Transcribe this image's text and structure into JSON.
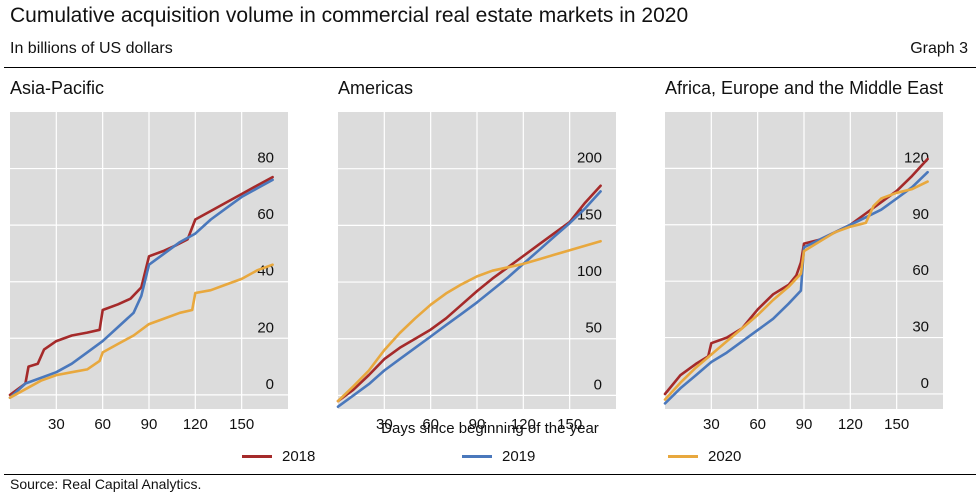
{
  "title": "Cumulative acquisition volume in commercial real estate markets in 2020",
  "subtitle": "In billions of US dollars",
  "graph_label": "Graph 3",
  "xlabel": "Days since beginning of the year",
  "source": "Source: Real Capital Analytics.",
  "legend": [
    {
      "name": "2018",
      "color": "#a52a2a"
    },
    {
      "name": "2019",
      "color": "#4a78bc"
    },
    {
      "name": "2020",
      "color": "#e8a83e"
    }
  ],
  "chart_data": [
    {
      "type": "line",
      "title": "Asia-Pacific",
      "xlim": [
        0,
        180
      ],
      "ylim": [
        -5,
        100
      ],
      "x_ticks": [
        30,
        60,
        90,
        120,
        150
      ],
      "y_ticks": [
        0,
        20,
        40,
        60,
        80
      ],
      "series": [
        {
          "name": "2018",
          "color": "#a52a2a",
          "x": [
            0,
            10,
            12,
            18,
            22,
            30,
            40,
            50,
            58,
            60,
            70,
            78,
            85,
            90,
            100,
            108,
            115,
            120,
            130,
            140,
            150,
            160,
            170
          ],
          "y": [
            0,
            4,
            10,
            11,
            16,
            19,
            21,
            22,
            23,
            30,
            32,
            34,
            38,
            49,
            51,
            53,
            55,
            62,
            65,
            68,
            71,
            74,
            77
          ]
        },
        {
          "name": "2019",
          "color": "#4a78bc",
          "x": [
            0,
            10,
            20,
            30,
            40,
            50,
            60,
            70,
            80,
            85,
            90,
            100,
            110,
            120,
            130,
            140,
            150,
            160,
            170
          ],
          "y": [
            -1,
            4,
            6,
            8,
            11,
            15,
            19,
            24,
            29,
            35,
            46,
            50,
            54,
            57,
            62,
            66,
            70,
            73,
            76
          ]
        },
        {
          "name": "2020",
          "color": "#e8a83e",
          "x": [
            0,
            10,
            20,
            30,
            40,
            50,
            58,
            60,
            70,
            80,
            90,
            100,
            110,
            118,
            120,
            130,
            140,
            150,
            160,
            170
          ],
          "y": [
            -1,
            2,
            5,
            7,
            8,
            9,
            12,
            15,
            18,
            21,
            25,
            27,
            29,
            30,
            36,
            37,
            39,
            41,
            44,
            46
          ]
        }
      ]
    },
    {
      "type": "line",
      "title": "Americas",
      "xlim": [
        0,
        180
      ],
      "ylim": [
        -12,
        250
      ],
      "x_ticks": [
        30,
        60,
        90,
        120,
        150
      ],
      "y_ticks": [
        0,
        50,
        100,
        150,
        200
      ],
      "series": [
        {
          "name": "2018",
          "color": "#a52a2a",
          "x": [
            0,
            10,
            20,
            30,
            40,
            50,
            60,
            70,
            80,
            90,
            100,
            110,
            120,
            130,
            140,
            150,
            160,
            170
          ],
          "y": [
            -5,
            5,
            18,
            32,
            42,
            50,
            58,
            68,
            80,
            92,
            103,
            113,
            123,
            133,
            143,
            153,
            170,
            185
          ]
        },
        {
          "name": "2019",
          "color": "#4a78bc",
          "x": [
            0,
            10,
            20,
            30,
            40,
            50,
            60,
            70,
            80,
            90,
            100,
            110,
            120,
            130,
            140,
            150,
            160,
            170
          ],
          "y": [
            -10,
            0,
            10,
            22,
            32,
            42,
            52,
            62,
            72,
            82,
            93,
            104,
            116,
            128,
            140,
            152,
            165,
            180
          ]
        },
        {
          "name": "2020",
          "color": "#e8a83e",
          "x": [
            0,
            10,
            20,
            30,
            40,
            50,
            60,
            70,
            80,
            90,
            100,
            110,
            120,
            130,
            140,
            150,
            160,
            170
          ],
          "y": [
            -5,
            8,
            22,
            40,
            55,
            68,
            80,
            90,
            98,
            105,
            110,
            113,
            116,
            120,
            124,
            128,
            132,
            136
          ]
        }
      ]
    },
    {
      "type": "line",
      "title": "Africa, Europe and the Middle East",
      "xlim": [
        0,
        180
      ],
      "ylim": [
        -8,
        150
      ],
      "x_ticks": [
        30,
        60,
        90,
        120,
        150
      ],
      "y_ticks": [
        0,
        30,
        60,
        90,
        120
      ],
      "series": [
        {
          "name": "2018",
          "color": "#a52a2a",
          "x": [
            0,
            10,
            20,
            28,
            30,
            40,
            50,
            60,
            70,
            80,
            85,
            88,
            90,
            100,
            110,
            120,
            130,
            140,
            150,
            160,
            170
          ],
          "y": [
            0,
            10,
            16,
            20,
            27,
            30,
            35,
            45,
            53,
            58,
            63,
            70,
            80,
            82,
            86,
            90,
            96,
            102,
            108,
            116,
            125
          ]
        },
        {
          "name": "2019",
          "color": "#4a78bc",
          "x": [
            0,
            10,
            20,
            30,
            40,
            50,
            60,
            70,
            80,
            88,
            90,
            100,
            110,
            120,
            130,
            140,
            150,
            160,
            170
          ],
          "y": [
            -5,
            3,
            10,
            17,
            22,
            28,
            34,
            40,
            48,
            55,
            78,
            82,
            86,
            90,
            94,
            98,
            104,
            110,
            118
          ]
        },
        {
          "name": "2020",
          "color": "#e8a83e",
          "x": [
            0,
            10,
            20,
            30,
            40,
            50,
            60,
            70,
            80,
            88,
            90,
            100,
            110,
            120,
            130,
            135,
            140,
            150,
            160,
            170
          ],
          "y": [
            -3,
            6,
            14,
            21,
            28,
            35,
            42,
            50,
            57,
            64,
            76,
            81,
            86,
            89,
            91,
            100,
            104,
            107,
            109,
            113
          ]
        }
      ]
    }
  ]
}
